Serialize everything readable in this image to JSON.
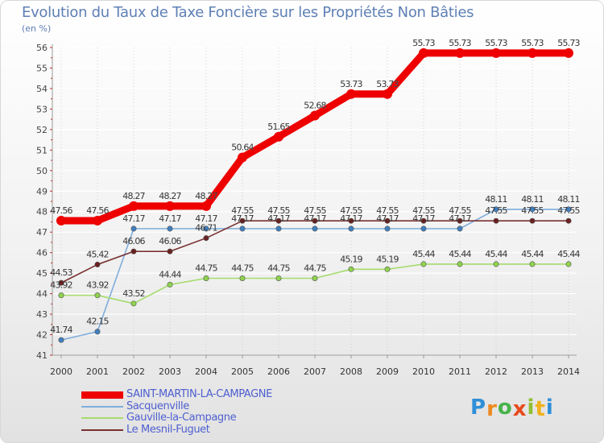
{
  "chart_data": {
    "type": "line",
    "title": "Evolution du Taux de Taxe Foncière sur les Propriétés Non Bâties",
    "ylabel": "(en %)",
    "xlabel": "",
    "ylim": [
      41,
      56
    ],
    "yticks": [
      "41",
      "42",
      "43",
      "44",
      "45",
      "46",
      "47",
      "48",
      "49",
      "50",
      "51",
      "52",
      "53",
      "54",
      "55",
      "56"
    ],
    "x": [
      "2000",
      "2001",
      "2002",
      "2003",
      "2004",
      "2005",
      "2006",
      "2007",
      "2008",
      "2009",
      "2010",
      "2011",
      "2012",
      "2013",
      "2014"
    ],
    "series": [
      {
        "name": "SAINT-MARTIN-LA-CAMPAGNE",
        "color": "#ee0000",
        "marker": "#ee0000",
        "values": [
          47.56,
          47.56,
          48.27,
          48.27,
          48.27,
          50.64,
          51.65,
          52.68,
          53.73,
          53.73,
          55.73,
          55.73,
          55.73,
          55.73,
          55.73
        ],
        "labels": [
          "47.56",
          "47.56",
          "48.27",
          "48.27",
          "48.27",
          "50.64",
          "51.65",
          "52.68",
          "53.73",
          "53.73",
          "55.73",
          "55.73",
          "55.73",
          "55.73",
          "55.73"
        ]
      },
      {
        "name": "Sacquenville",
        "color": "#7faedc",
        "marker": "#3f7fc0",
        "values": [
          41.74,
          42.15,
          47.17,
          47.17,
          47.17,
          47.17,
          47.17,
          47.17,
          47.17,
          47.17,
          47.17,
          47.17,
          48.11,
          48.11,
          48.11
        ],
        "labels": [
          "41.74",
          "42.15",
          "47.17",
          "47.17",
          "47.17",
          "47.17",
          "47.17",
          "47.17",
          "47.17",
          "47.17",
          "47.17",
          "47.17",
          "48.11",
          "48.11",
          "48.11"
        ]
      },
      {
        "name": "Gauville-la-Campagne",
        "color": "#a6dc6e",
        "marker": "#8fd24e",
        "values": [
          43.92,
          43.92,
          43.52,
          44.44,
          44.75,
          44.75,
          44.75,
          44.75,
          45.19,
          45.19,
          45.44,
          45.44,
          45.44,
          45.44,
          45.44
        ],
        "labels": [
          "43.92",
          "43.92",
          "43.52",
          "44.44",
          "44.75",
          "44.75",
          "44.75",
          "44.75",
          "45.19",
          "45.19",
          "45.44",
          "45.44",
          "45.44",
          "45.44",
          "45.44"
        ]
      },
      {
        "name": "Le Mesnil-Fuguet",
        "color": "#7a3030",
        "marker": "#6a2020",
        "values": [
          44.53,
          45.42,
          46.06,
          46.06,
          46.71,
          47.55,
          47.55,
          47.55,
          47.55,
          47.55,
          47.55,
          47.55,
          47.55,
          47.55,
          47.55
        ],
        "labels": [
          "44.53",
          "45.42",
          "46.06",
          "46.06",
          "46.71",
          "47.55",
          "47.55",
          "47.55",
          "47.55",
          "47.55",
          "47.55",
          "47.55",
          "47.55",
          "47.55",
          "47.55"
        ]
      }
    ],
    "legend": "bottom-left"
  },
  "brand": {
    "letters": [
      "P",
      "r",
      "o",
      "x",
      "i",
      "t",
      "i"
    ],
    "colors": [
      "#2f8fd8",
      "#f08a1e",
      "#46b34a",
      "#e84a1c",
      "#8fbf2f",
      "#f0b11e",
      "#2f8fd8"
    ]
  }
}
